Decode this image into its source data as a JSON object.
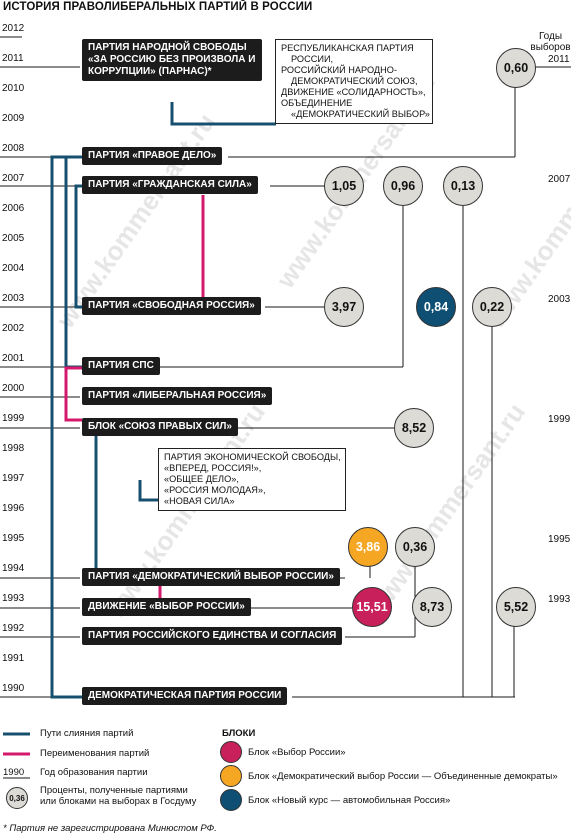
{
  "title": "ИСТОРИЯ ПРАВОЛИБЕРАЛЬНЫХ ПАРТИЙ В РОССИИ",
  "left_years": [
    "2012",
    "2011",
    "2010",
    "2009",
    "2008",
    "2007",
    "2006",
    "2005",
    "2004",
    "2003",
    "2002",
    "2001",
    "2000",
    "1999",
    "1998",
    "1997",
    "1996",
    "1995",
    "1994",
    "1993",
    "1992",
    "1991",
    "1990"
  ],
  "election_header": "Годы выборов",
  "election_years": [
    "2011",
    "2007",
    "2003",
    "1999",
    "1995",
    "1993"
  ],
  "parties": {
    "parnas": "ПАРТИЯ НАРОДНОЙ СВОБОДЫ «ЗА РОССИЮ БЕЗ ПРОИЗВОЛА И КОРРУПЦИИ» (ПАРНАС)*",
    "pravoe_delo": "ПАРТИЯ «ПРАВОЕ ДЕЛО»",
    "grazhd_sila": "ПАРТИЯ «ГРАЖДАНСКАЯ СИЛА»",
    "svobodnaya": "ПАРТИЯ «СВОБОДНАЯ РОССИЯ»",
    "sps": "ПАРТИЯ СПС",
    "liberalnaya": "ПАРТИЯ «ЛИБЕРАЛЬНАЯ РОССИЯ»",
    "blok_sps": "БЛОК «СОЮЗ ПРАВЫХ СИЛ»",
    "dvr": "ПАРТИЯ «ДЕМОКРАТИЧЕСКИЙ ВЫБОР РОССИИ»",
    "vybor": "ДВИЖЕНИЕ «ВЫБОР РОССИИ»",
    "pres": "ПАРТИЯ РОССИЙСКОГО ЕДИНСТВА И СОГЛАСИЯ",
    "dpr": "ДЕМОКРАТИЧЕСКАЯ ПАРТИЯ РОССИИ"
  },
  "info_boxes": {
    "top": [
      "РЕСПУБЛИКАНСКАЯ ПАРТИЯ",
      "РОССИИ,",
      "РОССИЙСКИЙ НАРОДНО-",
      "ДЕМОКРАТИЧЕСКИЙ СОЮЗ,",
      "ДВИЖЕНИЕ «СОЛИДАРНОСТЬ»,",
      "ОБЪЕДИНЕНИЕ",
      "«ДЕМОКРАТИЧЕСКИЙ ВЫБОР»"
    ],
    "mid": [
      "ПАРТИЯ ЭКОНОМИЧЕСКОЙ СВОБОДЫ,",
      "«ВПЕРЕД, РОССИЯ!»,",
      "«ОБЩЕЕ ДЕЛО»,",
      "«РОССИЯ МОЛОДАЯ»,",
      "«НОВАЯ СИЛА»"
    ]
  },
  "results": {
    "r060": "0,60",
    "r105": "1,05",
    "r096": "0,96",
    "r013": "0,13",
    "r397": "3,97",
    "r084": "0,84",
    "r022": "0,22",
    "r852": "8,52",
    "r386": "3,86",
    "r036": "0,36",
    "r1551": "15,51",
    "r873": "8,73",
    "r552": "5,52"
  },
  "legend": {
    "merge": "Пути слияния партий",
    "rename": "Переименования партий",
    "year_sample": "1990",
    "year_label": "Год образования партии",
    "bubble_sample": "0,36",
    "bubble_label": "Проценты, полученные партиями или блоками на выборах в Госдуму",
    "blocs_title": "БЛОКИ",
    "bloc1": "Блок «Выбор России»",
    "bloc2": "Блок «Демократический выбор России — Объединенные демократы»",
    "bloc3": "Блок «Новый курс — автомобильная Россия»"
  },
  "footnote": "* Партия не зарегистрирована Минюстом РФ.",
  "watermark": "www.kommersant.ru",
  "colors": {
    "merge_line": "#17506e",
    "rename_line": "#d4186c",
    "bubble_fill": "#dcdbd6",
    "box_fill": "#1c1c1c",
    "red": "#c8205a",
    "orange": "#f5a623",
    "blue": "#0e4f73"
  }
}
